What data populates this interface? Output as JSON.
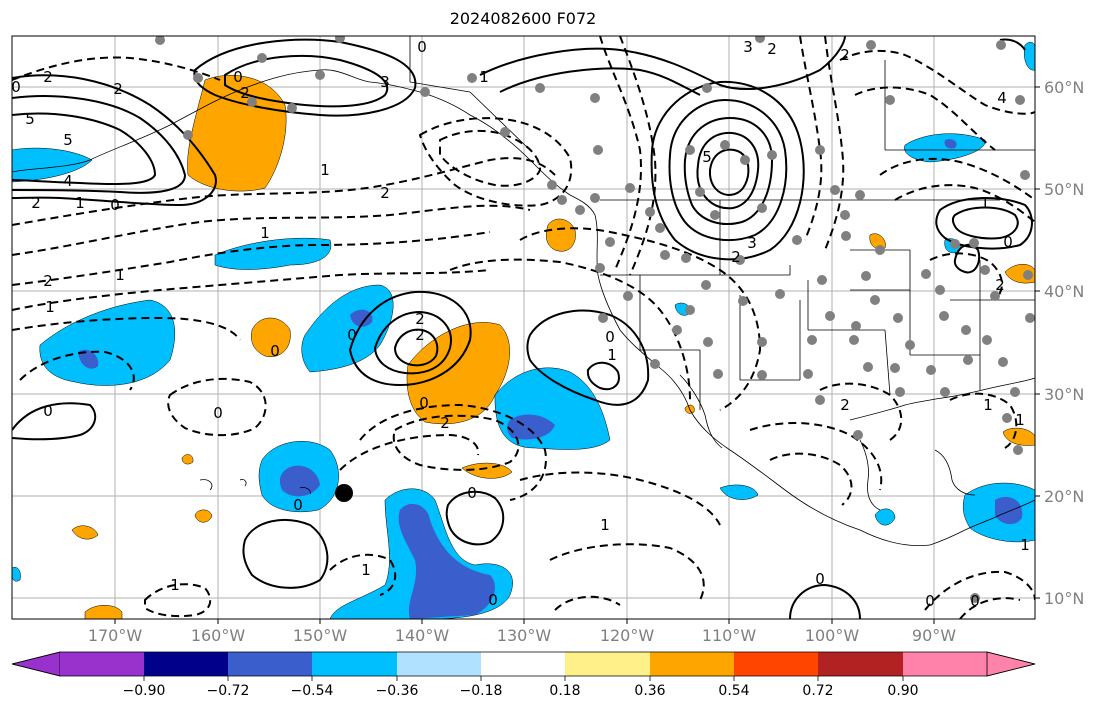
{
  "title": "2024082600 F072",
  "lat_labels": [
    "60°N",
    "50°N",
    "40°N",
    "30°N",
    "20°N",
    "10°N"
  ],
  "lon_labels": [
    "170°W",
    "160°W",
    "150°W",
    "140°W",
    "130°W",
    "120°W",
    "110°W",
    "100°W",
    "90°W"
  ],
  "colorbar": {
    "tick_labels": [
      "−0.90",
      "−0.72",
      "−0.54",
      "−0.36",
      "−0.18",
      "0.18",
      "0.36",
      "0.54",
      "0.72",
      "0.90"
    ],
    "colors": [
      "#9932cc",
      "#00008b",
      "#3a5fcd",
      "#00bfff",
      "#b0e2ff",
      "#ffffff",
      "#fff08a",
      "#ffa500",
      "#ff4500",
      "#b22222",
      "#ff82ab"
    ]
  },
  "contour_labels": [
    "0",
    "2",
    "5",
    "3",
    "2",
    "1",
    "0",
    "3",
    "2",
    "1",
    "5",
    "4",
    "2",
    "1",
    "0",
    "5",
    "2",
    "1",
    "3",
    "2",
    "1",
    "0",
    "2",
    "1",
    "1",
    "0",
    "0",
    "2",
    "0",
    "1",
    "2",
    "0",
    "2",
    "0",
    "0",
    "0",
    "1",
    "0",
    "0",
    "2",
    "1",
    "0",
    "0",
    "2",
    "1",
    "1",
    "0",
    "1",
    "2",
    "4",
    "2",
    "1",
    "0"
  ],
  "map_colors": {
    "orange": "#ffa500",
    "blue": "#00bfff",
    "dark_blue": "#3a5fcd",
    "gray_dot": "#808080"
  }
}
